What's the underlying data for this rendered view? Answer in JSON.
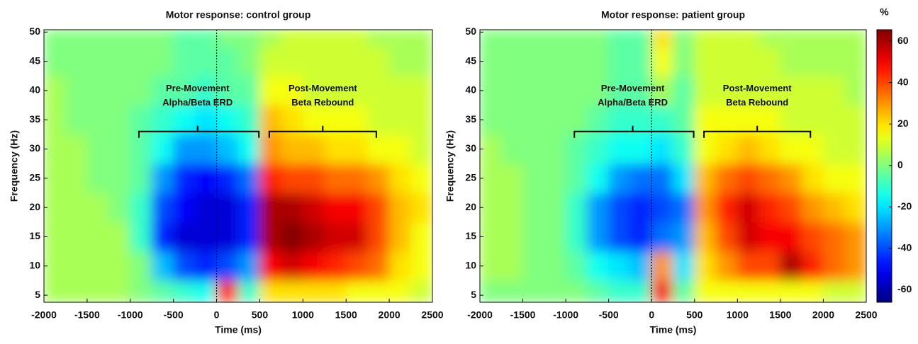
{
  "chart_data": [
    {
      "type": "heatmap",
      "title": "Motor response: control group",
      "xlabel": "Time (ms)",
      "ylabel": "Frequency (Hz)",
      "xlim": [
        -2000,
        2500
      ],
      "ylim": [
        3.8,
        50.4
      ],
      "xticks": [
        -2000,
        -1500,
        -1000,
        -500,
        0,
        500,
        1000,
        1500,
        2000,
        2500
      ],
      "yticks": [
        5,
        10,
        15,
        20,
        25,
        30,
        35,
        40,
        45,
        50
      ],
      "x_bins": [
        -2000,
        -1750,
        -1500,
        -1250,
        -1000,
        -750,
        -500,
        -250,
        0,
        250,
        500,
        750,
        1000,
        1250,
        1500,
        1750,
        2000,
        2250,
        2500
      ],
      "y_bins": [
        3.8,
        7.5,
        12.5,
        17.5,
        22.5,
        27.5,
        32.5,
        37.5,
        42.5,
        47.5,
        50.4
      ],
      "z": [
        [
          5,
          5,
          5,
          5,
          0,
          -5,
          -10,
          -15,
          45,
          -10,
          20,
          20,
          20,
          20,
          15,
          15,
          15,
          10
        ],
        [
          5,
          5,
          5,
          5,
          0,
          -25,
          -40,
          -45,
          -40,
          -30,
          50,
          55,
          50,
          45,
          40,
          35,
          20,
          15
        ],
        [
          5,
          5,
          5,
          5,
          -10,
          -45,
          -55,
          -55,
          -55,
          -45,
          60,
          65,
          60,
          55,
          55,
          40,
          25,
          15
        ],
        [
          5,
          5,
          5,
          0,
          -10,
          -40,
          -50,
          -55,
          -55,
          -45,
          60,
          60,
          55,
          50,
          50,
          40,
          25,
          20
        ],
        [
          5,
          5,
          0,
          0,
          -5,
          -30,
          -45,
          -50,
          -45,
          -35,
          45,
          40,
          40,
          35,
          35,
          30,
          20,
          15
        ],
        [
          5,
          5,
          0,
          0,
          -5,
          -15,
          -30,
          -30,
          -25,
          -15,
          30,
          25,
          25,
          20,
          20,
          15,
          15,
          10
        ],
        [
          5,
          0,
          0,
          0,
          -5,
          -10,
          -15,
          -20,
          -15,
          -10,
          25,
          20,
          15,
          15,
          15,
          10,
          10,
          10
        ],
        [
          5,
          0,
          0,
          0,
          0,
          -5,
          -5,
          -10,
          -5,
          -5,
          15,
          15,
          10,
          10,
          10,
          10,
          10,
          10
        ],
        [
          0,
          0,
          0,
          0,
          0,
          0,
          -5,
          -5,
          -5,
          0,
          10,
          10,
          10,
          10,
          10,
          10,
          5,
          5
        ],
        [
          0,
          0,
          0,
          0,
          0,
          0,
          -5,
          -5,
          0,
          0,
          5,
          10,
          10,
          10,
          10,
          5,
          5,
          5
        ]
      ],
      "annotations": [
        {
          "lines": [
            "Pre-Movement",
            "Alpha/Beta ERD"
          ]
        },
        {
          "lines": [
            "Post-Movement",
            "Beta Rebound"
          ]
        }
      ]
    },
    {
      "type": "heatmap",
      "title": "Motor response: patient group",
      "xlabel": "Time (ms)",
      "ylabel": "Frequency (Hz)",
      "xlim": [
        -2000,
        2500
      ],
      "ylim": [
        3.8,
        50.4
      ],
      "xticks": [
        -2000,
        -1500,
        -1000,
        -500,
        0,
        500,
        1000,
        1500,
        2000,
        2500
      ],
      "yticks": [
        5,
        10,
        15,
        20,
        25,
        30,
        35,
        40,
        45,
        50
      ],
      "x_bins": [
        -2000,
        -1750,
        -1500,
        -1250,
        -1000,
        -750,
        -500,
        -250,
        0,
        250,
        500,
        750,
        1000,
        1250,
        1500,
        1750,
        2000,
        2250,
        2500
      ],
      "y_bins": [
        3.8,
        7.5,
        12.5,
        17.5,
        22.5,
        27.5,
        32.5,
        37.5,
        42.5,
        47.5,
        50.4
      ],
      "z": [
        [
          0,
          0,
          0,
          0,
          0,
          -5,
          -10,
          -10,
          50,
          -5,
          15,
          15,
          15,
          15,
          15,
          15,
          10,
          10
        ],
        [
          5,
          5,
          0,
          0,
          -5,
          -15,
          -20,
          -25,
          30,
          -20,
          20,
          30,
          40,
          40,
          60,
          45,
          35,
          30
        ],
        [
          5,
          5,
          0,
          0,
          -10,
          -30,
          -40,
          -45,
          -35,
          -30,
          25,
          40,
          55,
          50,
          50,
          40,
          35,
          30
        ],
        [
          5,
          5,
          0,
          0,
          -10,
          -30,
          -40,
          -45,
          -40,
          -35,
          30,
          45,
          55,
          45,
          40,
          30,
          25,
          20
        ],
        [
          5,
          5,
          0,
          0,
          -5,
          -15,
          -30,
          -35,
          -35,
          -20,
          25,
          35,
          40,
          35,
          30,
          20,
          15,
          15
        ],
        [
          5,
          0,
          0,
          0,
          -5,
          -10,
          -15,
          -15,
          -20,
          -10,
          15,
          20,
          25,
          20,
          15,
          15,
          10,
          10
        ],
        [
          0,
          0,
          0,
          0,
          0,
          -5,
          -10,
          -10,
          -10,
          -5,
          15,
          15,
          15,
          15,
          10,
          10,
          10,
          10
        ],
        [
          0,
          0,
          0,
          0,
          0,
          0,
          -5,
          -5,
          5,
          -5,
          10,
          10,
          10,
          10,
          10,
          10,
          10,
          5
        ],
        [
          0,
          0,
          0,
          0,
          0,
          0,
          -5,
          -5,
          15,
          0,
          10,
          10,
          10,
          10,
          5,
          5,
          5,
          5
        ],
        [
          0,
          0,
          0,
          0,
          0,
          0,
          -5,
          -5,
          20,
          0,
          10,
          10,
          10,
          5,
          5,
          5,
          5,
          5
        ]
      ],
      "annotations": [
        {
          "lines": [
            "Pre-Movement",
            "Alpha/Beta ERD"
          ]
        },
        {
          "lines": [
            "Post-Movement",
            "Beta Rebound"
          ]
        }
      ]
    }
  ],
  "colorbar": {
    "label": "%",
    "colormap": "jet",
    "clim": [
      -66,
      65.5
    ],
    "ticks": [
      -60,
      -40,
      -20,
      0,
      20,
      40,
      60
    ]
  }
}
